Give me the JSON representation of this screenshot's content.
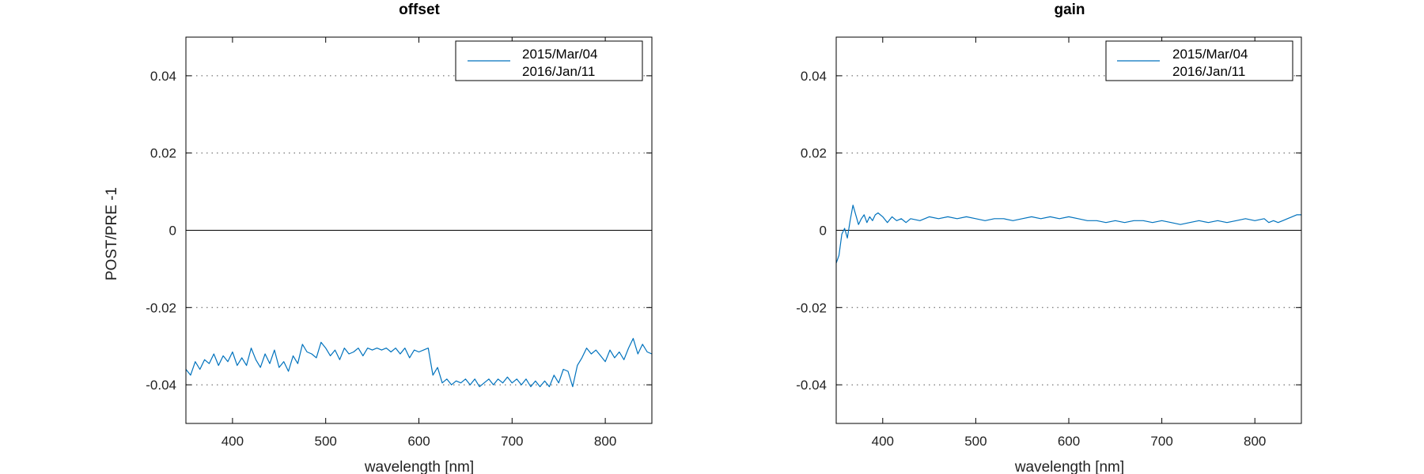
{
  "chart_data": [
    {
      "type": "line",
      "title": "offset",
      "xlabel": "wavelength [nm]",
      "ylabel": "POST/PRE -1",
      "xlim": [
        350,
        850
      ],
      "ylim": [
        -0.05,
        0.05
      ],
      "xticks": [
        400,
        500,
        600,
        700,
        800
      ],
      "xticklabels": [
        "400",
        "500",
        "600",
        "700",
        "800"
      ],
      "yticks": [
        0.04,
        0.02,
        0,
        -0.02,
        -0.04
      ],
      "yticklabels": [
        "0.04",
        "0.02",
        "0",
        "-0.02",
        "-0.04"
      ],
      "grid": "dotted horizontal",
      "legend_position": "top-right",
      "legend": [
        "2015/Mar/04",
        "2016/Jan/11"
      ],
      "series": [
        {
          "name": "2015/Mar/04",
          "color": "#0072bd",
          "x": [
            350,
            355,
            360,
            365,
            370,
            375,
            380,
            385,
            390,
            395,
            400,
            405,
            410,
            415,
            420,
            425,
            430,
            435,
            440,
            445,
            450,
            455,
            460,
            465,
            470,
            475,
            480,
            485,
            490,
            495,
            500,
            505,
            510,
            515,
            520,
            525,
            530,
            535,
            540,
            545,
            550,
            555,
            560,
            565,
            570,
            575,
            580,
            585,
            590,
            595,
            600,
            605,
            610,
            615,
            620,
            625,
            630,
            635,
            640,
            645,
            650,
            655,
            660,
            665,
            670,
            675,
            680,
            685,
            690,
            695,
            700,
            705,
            710,
            715,
            720,
            725,
            730,
            735,
            740,
            745,
            750,
            755,
            760,
            765,
            770,
            775,
            780,
            785,
            790,
            795,
            800,
            805,
            810,
            815,
            820,
            825,
            830,
            835,
            840,
            845,
            850
          ],
          "y": [
            -0.036,
            -0.0375,
            -0.034,
            -0.036,
            -0.0335,
            -0.0345,
            -0.032,
            -0.035,
            -0.0325,
            -0.034,
            -0.0315,
            -0.035,
            -0.033,
            -0.035,
            -0.0305,
            -0.0335,
            -0.0355,
            -0.032,
            -0.0345,
            -0.031,
            -0.0355,
            -0.034,
            -0.0365,
            -0.0325,
            -0.0345,
            -0.0295,
            -0.0315,
            -0.032,
            -0.033,
            -0.029,
            -0.0305,
            -0.0325,
            -0.031,
            -0.0335,
            -0.0305,
            -0.032,
            -0.0315,
            -0.0305,
            -0.0325,
            -0.0305,
            -0.031,
            -0.0305,
            -0.031,
            -0.0305,
            -0.0315,
            -0.0305,
            -0.032,
            -0.0305,
            -0.033,
            -0.031,
            -0.0315,
            -0.031,
            -0.0305,
            -0.0375,
            -0.0355,
            -0.0395,
            -0.0385,
            -0.04,
            -0.039,
            -0.0395,
            -0.0385,
            -0.04,
            -0.0385,
            -0.0405,
            -0.0395,
            -0.0385,
            -0.04,
            -0.0385,
            -0.0395,
            -0.038,
            -0.0395,
            -0.0385,
            -0.04,
            -0.0385,
            -0.0405,
            -0.039,
            -0.0405,
            -0.039,
            -0.0405,
            -0.0375,
            -0.0395,
            -0.036,
            -0.0365,
            -0.0405,
            -0.035,
            -0.033,
            -0.0305,
            -0.032,
            -0.031,
            -0.0325,
            -0.034,
            -0.031,
            -0.033,
            -0.0315,
            -0.0335,
            -0.0305,
            -0.028,
            -0.032,
            -0.0295,
            -0.0315,
            -0.032
          ]
        },
        {
          "name": "2016/Jan/11",
          "color": "#0072bd",
          "x": [],
          "y": []
        }
      ]
    },
    {
      "type": "line",
      "title": "gain",
      "xlabel": "wavelength [nm]",
      "ylabel": "",
      "xlim": [
        350,
        850
      ],
      "ylim": [
        -0.05,
        0.05
      ],
      "xticks": [
        400,
        500,
        600,
        700,
        800
      ],
      "xticklabels": [
        "400",
        "500",
        "600",
        "700",
        "800"
      ],
      "yticks": [
        0.04,
        0.02,
        0,
        -0.02,
        -0.04
      ],
      "yticklabels": [
        "0.04",
        "0.02",
        "0",
        "-0.02",
        "-0.04"
      ],
      "grid": "dotted horizontal",
      "legend_position": "top-right",
      "legend": [
        "2015/Mar/04",
        "2016/Jan/11"
      ],
      "series": [
        {
          "name": "2015/Mar/04",
          "color": "#0072bd",
          "x": [
            350,
            353,
            356,
            359,
            362,
            365,
            368,
            371,
            374,
            377,
            380,
            383,
            386,
            389,
            392,
            395,
            400,
            405,
            410,
            415,
            420,
            425,
            430,
            440,
            450,
            460,
            470,
            480,
            490,
            500,
            510,
            520,
            530,
            540,
            550,
            560,
            570,
            580,
            590,
            600,
            610,
            620,
            630,
            640,
            650,
            660,
            670,
            680,
            690,
            700,
            710,
            720,
            730,
            740,
            750,
            760,
            770,
            780,
            790,
            800,
            810,
            815,
            820,
            825,
            830,
            835,
            840,
            845,
            850
          ],
          "y": [
            -0.0085,
            -0.0065,
            -0.001,
            0.0005,
            -0.002,
            0.0025,
            0.0065,
            0.004,
            0.0015,
            0.003,
            0.004,
            0.002,
            0.0035,
            0.0025,
            0.004,
            0.0045,
            0.0035,
            0.002,
            0.0035,
            0.0025,
            0.003,
            0.002,
            0.003,
            0.0025,
            0.0035,
            0.003,
            0.0035,
            0.003,
            0.0035,
            0.003,
            0.0025,
            0.003,
            0.003,
            0.0025,
            0.003,
            0.0035,
            0.003,
            0.0035,
            0.003,
            0.0035,
            0.003,
            0.0025,
            0.0025,
            0.002,
            0.0025,
            0.002,
            0.0025,
            0.0025,
            0.002,
            0.0025,
            0.002,
            0.0015,
            0.002,
            0.0025,
            0.002,
            0.0025,
            0.002,
            0.0025,
            0.003,
            0.0025,
            0.003,
            0.002,
            0.0025,
            0.002,
            0.0025,
            0.003,
            0.0035,
            0.004,
            0.004
          ]
        },
        {
          "name": "2016/Jan/11",
          "color": "#0072bd",
          "x": [],
          "y": []
        }
      ]
    }
  ]
}
